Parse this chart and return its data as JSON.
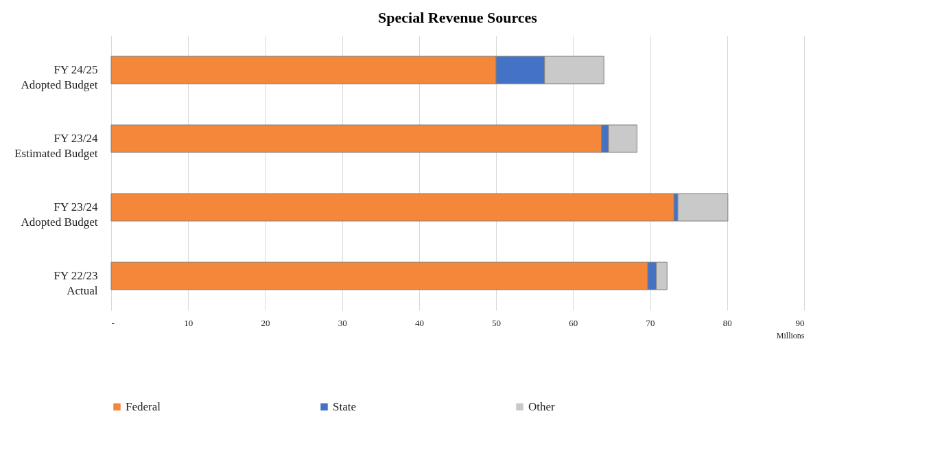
{
  "chart_data": {
    "type": "bar",
    "orientation": "horizontal",
    "stacked": true,
    "title": "Special Revenue Sources",
    "xlabel": "Millions",
    "categories": [
      "FY 24/25\nAdopted Budget",
      "FY 23/24\nEstimated Budget",
      "FY 23/24\nAdopted Budget",
      "FY 22/23\nActual"
    ],
    "series": [
      {
        "name": "Federal",
        "color": "#f5873a",
        "values": [
          50.0,
          63.7,
          73.1,
          69.7
        ]
      },
      {
        "name": "State",
        "color": "#4472c4",
        "values": [
          6.3,
          0.9,
          0.5,
          1.1
        ]
      },
      {
        "name": "Other",
        "color": "#c9c9c9",
        "values": [
          7.7,
          3.7,
          6.5,
          1.4
        ]
      }
    ],
    "xlim": [
      0,
      90
    ],
    "xticks": [
      {
        "value": 0,
        "label": "-"
      },
      10,
      20,
      30,
      40,
      50,
      60,
      70,
      80,
      90
    ],
    "grid": "x",
    "legend": "bottom"
  }
}
